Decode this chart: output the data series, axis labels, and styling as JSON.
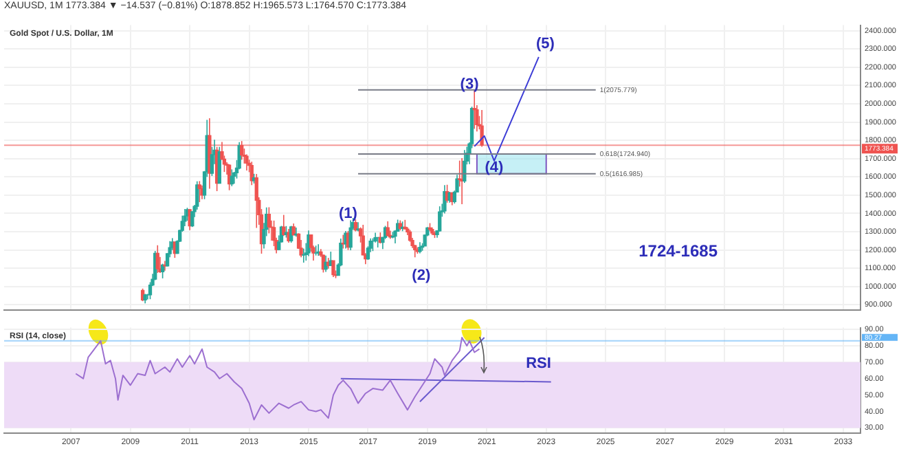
{
  "chart_data": [
    {
      "type": "candlestick",
      "title": "Gold Spot / U.S. Dollar, 1M",
      "subtitle": "XAUUSD, 1M 1773.384 ▼ −14.537 (−0.81%) O:1878.852 H:1965.573 L:1764.570 C:1773.384",
      "x": [
        "2009-06",
        "2009-07",
        "2009-08",
        "2009-09",
        "2009-10",
        "2009-11",
        "2009-12",
        "2010-01",
        "2010-02",
        "2010-03",
        "2010-04",
        "2010-05",
        "2010-06",
        "2010-07",
        "2010-08",
        "2010-09",
        "2010-10",
        "2010-11",
        "2010-12",
        "2011-01",
        "2011-02",
        "2011-03",
        "2011-04",
        "2011-05",
        "2011-06",
        "2011-07",
        "2011-08",
        "2011-09",
        "2011-10",
        "2011-11",
        "2011-12",
        "2012-01",
        "2012-02",
        "2012-03",
        "2012-04",
        "2012-05",
        "2012-06",
        "2012-07",
        "2012-08",
        "2012-09",
        "2012-10",
        "2012-11",
        "2012-12",
        "2013-01",
        "2013-02",
        "2013-03",
        "2013-04",
        "2013-05",
        "2013-06",
        "2013-07",
        "2013-08",
        "2013-09",
        "2013-10",
        "2013-11",
        "2013-12",
        "2014-01",
        "2014-02",
        "2014-03",
        "2014-04",
        "2014-05",
        "2014-06",
        "2014-07",
        "2014-08",
        "2014-09",
        "2014-10",
        "2014-11",
        "2014-12",
        "2015-01",
        "2015-02",
        "2015-03",
        "2015-04",
        "2015-05",
        "2015-06",
        "2015-07",
        "2015-08",
        "2015-09",
        "2015-10",
        "2015-11",
        "2015-12",
        "2016-01",
        "2016-02",
        "2016-03",
        "2016-04",
        "2016-05",
        "2016-06",
        "2016-07",
        "2016-08",
        "2016-09",
        "2016-10",
        "2016-11",
        "2016-12",
        "2017-01",
        "2017-02",
        "2017-03",
        "2017-04",
        "2017-05",
        "2017-06",
        "2017-07",
        "2017-08",
        "2017-09",
        "2017-10",
        "2017-11",
        "2017-12",
        "2018-01",
        "2018-02",
        "2018-03",
        "2018-04",
        "2018-05",
        "2018-06",
        "2018-07",
        "2018-08",
        "2018-09",
        "2018-10",
        "2018-11",
        "2018-12",
        "2019-01",
        "2019-02",
        "2019-03",
        "2019-04",
        "2019-05",
        "2019-06",
        "2019-07",
        "2019-08",
        "2019-09",
        "2019-10",
        "2019-11",
        "2019-12",
        "2020-01",
        "2020-02",
        "2020-03",
        "2020-04",
        "2020-05",
        "2020-06",
        "2020-07",
        "2020-08",
        "2020-09",
        "2020-10",
        "2020-11"
      ],
      "ohlc": [
        [
          979,
          989,
          920,
          927
        ],
        [
          927,
          960,
          908,
          955
        ],
        [
          955,
          960,
          930,
          955
        ],
        [
          955,
          1024,
          931,
          1008
        ],
        [
          1008,
          1070,
          1003,
          1040
        ],
        [
          1040,
          1195,
          1035,
          1182
        ],
        [
          1182,
          1226,
          1075,
          1097
        ],
        [
          1097,
          1162,
          1075,
          1081
        ],
        [
          1081,
          1125,
          1045,
          1118
        ],
        [
          1118,
          1140,
          1087,
          1113
        ],
        [
          1113,
          1183,
          1110,
          1180
        ],
        [
          1180,
          1249,
          1160,
          1213
        ],
        [
          1213,
          1265,
          1200,
          1244
        ],
        [
          1244,
          1245,
          1157,
          1181
        ],
        [
          1181,
          1253,
          1179,
          1248
        ],
        [
          1248,
          1311,
          1244,
          1307
        ],
        [
          1307,
          1388,
          1300,
          1357
        ],
        [
          1357,
          1424,
          1330,
          1386
        ],
        [
          1386,
          1431,
          1360,
          1421
        ],
        [
          1421,
          1424,
          1309,
          1332
        ],
        [
          1332,
          1411,
          1326,
          1410
        ],
        [
          1410,
          1447,
          1380,
          1439
        ],
        [
          1439,
          1576,
          1421,
          1556
        ],
        [
          1556,
          1577,
          1462,
          1536
        ],
        [
          1536,
          1553,
          1478,
          1500
        ],
        [
          1500,
          1632,
          1478,
          1628
        ],
        [
          1628,
          1912,
          1600,
          1826
        ],
        [
          1826,
          1921,
          1535,
          1620
        ],
        [
          1620,
          1764,
          1605,
          1722
        ],
        [
          1722,
          1803,
          1670,
          1746
        ],
        [
          1746,
          1764,
          1522,
          1565
        ],
        [
          1565,
          1764,
          1563,
          1738
        ],
        [
          1738,
          1791,
          1693,
          1697
        ],
        [
          1697,
          1716,
          1627,
          1669
        ],
        [
          1669,
          1680,
          1612,
          1664
        ],
        [
          1664,
          1669,
          1527,
          1561
        ],
        [
          1561,
          1641,
          1549,
          1604
        ],
        [
          1604,
          1627,
          1563,
          1622
        ],
        [
          1622,
          1692,
          1591,
          1648
        ],
        [
          1648,
          1790,
          1642,
          1772
        ],
        [
          1772,
          1796,
          1694,
          1719
        ],
        [
          1719,
          1755,
          1673,
          1713
        ],
        [
          1713,
          1723,
          1635,
          1675
        ],
        [
          1675,
          1694,
          1626,
          1663
        ],
        [
          1663,
          1683,
          1555,
          1579
        ],
        [
          1579,
          1617,
          1564,
          1595
        ],
        [
          1595,
          1616,
          1321,
          1472
        ],
        [
          1472,
          1488,
          1338,
          1393
        ],
        [
          1393,
          1424,
          1180,
          1234
        ],
        [
          1234,
          1348,
          1208,
          1313
        ],
        [
          1313,
          1433,
          1276,
          1396
        ],
        [
          1396,
          1434,
          1291,
          1326
        ],
        [
          1326,
          1361,
          1251,
          1323
        ],
        [
          1323,
          1361,
          1221,
          1253
        ],
        [
          1253,
          1267,
          1182,
          1202
        ],
        [
          1202,
          1280,
          1199,
          1244
        ],
        [
          1244,
          1332,
          1241,
          1326
        ],
        [
          1326,
          1392,
          1277,
          1284
        ],
        [
          1284,
          1331,
          1268,
          1296
        ],
        [
          1296,
          1315,
          1240,
          1250
        ],
        [
          1250,
          1332,
          1240,
          1327
        ],
        [
          1327,
          1345,
          1281,
          1282
        ],
        [
          1282,
          1323,
          1273,
          1287
        ],
        [
          1287,
          1292,
          1206,
          1210
        ],
        [
          1210,
          1255,
          1160,
          1172
        ],
        [
          1172,
          1208,
          1131,
          1175
        ],
        [
          1175,
          1238,
          1142,
          1184
        ],
        [
          1184,
          1307,
          1167,
          1283
        ],
        [
          1283,
          1284,
          1191,
          1213
        ],
        [
          1213,
          1224,
          1142,
          1183
        ],
        [
          1183,
          1224,
          1170,
          1183
        ],
        [
          1183,
          1232,
          1169,
          1190
        ],
        [
          1190,
          1205,
          1162,
          1172
        ],
        [
          1172,
          1175,
          1077,
          1095
        ],
        [
          1095,
          1170,
          1080,
          1133
        ],
        [
          1133,
          1157,
          1098,
          1115
        ],
        [
          1115,
          1191,
          1112,
          1142
        ],
        [
          1142,
          1142,
          1052,
          1065
        ],
        [
          1065,
          1088,
          1046,
          1061
        ],
        [
          1061,
          1127,
          1060,
          1118
        ],
        [
          1118,
          1263,
          1111,
          1238
        ],
        [
          1238,
          1283,
          1208,
          1233
        ],
        [
          1233,
          1304,
          1208,
          1292
        ],
        [
          1292,
          1304,
          1200,
          1215
        ],
        [
          1215,
          1362,
          1199,
          1321
        ],
        [
          1321,
          1375,
          1310,
          1350
        ],
        [
          1350,
          1367,
          1302,
          1309
        ],
        [
          1309,
          1352,
          1302,
          1316
        ],
        [
          1316,
          1324,
          1241,
          1277
        ],
        [
          1277,
          1338,
          1171,
          1173
        ],
        [
          1173,
          1183,
          1123,
          1151
        ],
        [
          1151,
          1220,
          1146,
          1210
        ],
        [
          1210,
          1264,
          1188,
          1249
        ],
        [
          1249,
          1264,
          1194,
          1249
        ],
        [
          1249,
          1295,
          1241,
          1268
        ],
        [
          1268,
          1270,
          1214,
          1269
        ],
        [
          1269,
          1296,
          1236,
          1242
        ],
        [
          1242,
          1272,
          1205,
          1269
        ],
        [
          1269,
          1332,
          1260,
          1322
        ],
        [
          1322,
          1357,
          1274,
          1280
        ],
        [
          1280,
          1306,
          1261,
          1271
        ],
        [
          1271,
          1299,
          1264,
          1275
        ],
        [
          1275,
          1309,
          1236,
          1303
        ],
        [
          1303,
          1366,
          1302,
          1345
        ],
        [
          1345,
          1362,
          1307,
          1318
        ],
        [
          1318,
          1356,
          1303,
          1325
        ],
        [
          1325,
          1365,
          1314,
          1315
        ],
        [
          1315,
          1326,
          1281,
          1299
        ],
        [
          1299,
          1310,
          1245,
          1253
        ],
        [
          1253,
          1266,
          1211,
          1224
        ],
        [
          1224,
          1228,
          1160,
          1201
        ],
        [
          1201,
          1215,
          1180,
          1192
        ],
        [
          1192,
          1243,
          1182,
          1215
        ],
        [
          1215,
          1237,
          1196,
          1222
        ],
        [
          1222,
          1285,
          1221,
          1282
        ],
        [
          1282,
          1326,
          1276,
          1321
        ],
        [
          1321,
          1347,
          1302,
          1313
        ],
        [
          1313,
          1324,
          1281,
          1292
        ],
        [
          1292,
          1303,
          1266,
          1284
        ],
        [
          1284,
          1306,
          1267,
          1305
        ],
        [
          1305,
          1439,
          1301,
          1409
        ],
        [
          1409,
          1453,
          1382,
          1414
        ],
        [
          1414,
          1555,
          1400,
          1520
        ],
        [
          1520,
          1557,
          1459,
          1472
        ],
        [
          1472,
          1518,
          1459,
          1513
        ],
        [
          1513,
          1516,
          1445,
          1464
        ],
        [
          1464,
          1525,
          1454,
          1517
        ],
        [
          1517,
          1611,
          1517,
          1589
        ],
        [
          1589,
          1689,
          1547,
          1585
        ],
        [
          1585,
          1703,
          1451,
          1577
        ],
        [
          1577,
          1747,
          1567,
          1686
        ],
        [
          1686,
          1765,
          1668,
          1730
        ],
        [
          1730,
          1789,
          1670,
          1781
        ],
        [
          1781,
          1984,
          1757,
          1975
        ],
        [
          1975,
          2075,
          1863,
          1967
        ],
        [
          1967,
          1992,
          1848,
          1886
        ],
        [
          1886,
          1933,
          1860,
          1879
        ],
        [
          1878.852,
          1965.573,
          1764.57,
          1773.384
        ]
      ],
      "series": [
        {
          "type": "line",
          "name": "1(2075.779)",
          "color": "#787b86",
          "x": [
            "2016-09",
            "2024-09"
          ],
          "values": [
            2075.779,
            2075.779
          ]
        },
        {
          "type": "line",
          "name": "0.618(1724.940)",
          "color": "#787b86",
          "x": [
            "2016-09",
            "2024-09"
          ],
          "values": [
            1724.94,
            1724.94
          ]
        },
        {
          "type": "line",
          "name": "0.5(1616.985)",
          "color": "#787b86",
          "x": [
            "2016-09",
            "2024-09"
          ],
          "values": [
            1616.985,
            1616.985
          ]
        },
        {
          "type": "line",
          "color": "#7e57c2",
          "x": [
            "2020-09",
            "2023-01"
          ],
          "values": [
            null,
            null
          ],
          "lower": [
            1616.985,
            1616.985
          ],
          "upper": [
            1724.94,
            1724.94
          ]
        },
        {
          "type": "line",
          "color": "#3d3dd6",
          "x": [
            "2020-08",
            "2020-12",
            "2021-04",
            "2022-10"
          ],
          "values": [
            1767,
            1824,
            1688,
            2256
          ]
        }
      ],
      "xlim": [
        "2004-10",
        "2033-08"
      ],
      "ylim": [
        870,
        2430
      ],
      "yticks": [
        {
          "value": 900,
          "label": "900.000"
        },
        {
          "value": 1000,
          "label": "1000.000"
        },
        {
          "value": 1100,
          "label": "1100.000"
        },
        {
          "value": 1200,
          "label": "1200.000"
        },
        {
          "value": 1300,
          "label": "1300.000"
        },
        {
          "value": 1400,
          "label": "1400.000"
        },
        {
          "value": 1500,
          "label": "1500.000"
        },
        {
          "value": 1600,
          "label": "1600.000"
        },
        {
          "value": 1700,
          "label": "1700.000"
        },
        {
          "value": 1800,
          "label": "1800.000"
        },
        {
          "value": 1900,
          "label": "1900.000"
        },
        {
          "value": 2000,
          "label": "2000.000"
        },
        {
          "value": 2100,
          "label": "2100.000"
        },
        {
          "value": 2200,
          "label": "2200.000"
        },
        {
          "value": 2300,
          "label": "2300.000"
        },
        {
          "value": 2400,
          "label": "2400.000"
        }
      ],
      "xticks": [
        "2007",
        "2009",
        "2011",
        "2013",
        "2015",
        "2017",
        "2019",
        "2021",
        "2023",
        "2025",
        "2027",
        "2029",
        "2031",
        "2033"
      ],
      "tick_labels": "y",
      "grid": true,
      "ref_lines": [
        {
          "axis": "y",
          "value": 1773.384,
          "label": "1773.384",
          "color": "#ef5350"
        }
      ],
      "annotations": [
        {
          "text": "(1)",
          "x": "2016-05",
          "y": 1400
        },
        "(2)",
        {
          "text": "(3)",
          "x": "2020-06",
          "y": 2107
        },
        {
          "text": "(4)",
          "x": "2021-04",
          "y": 1652
        },
        "(5)",
        "1724-1685"
      ]
    },
    {
      "type": "line",
      "title": "RSI (14, close)",
      "series": [
        {
          "color": "#9c6fd0",
          "x": [
            "2007-03",
            "2007-06",
            "2007-08",
            "2007-10",
            "2008-01",
            "2008-03",
            "2008-05",
            "2008-07",
            "2008-08",
            "2008-10",
            "2009-01",
            "2009-04",
            "2009-07",
            "2009-09",
            "2009-11",
            "2010-03",
            "2010-05",
            "2010-08",
            "2010-10",
            "2011-01",
            "2011-03",
            "2011-06",
            "2011-08",
            "2011-11",
            "2012-01",
            "2012-04",
            "2012-07",
            "2012-10",
            "2013-01",
            "2013-03",
            "2013-06",
            "2013-09",
            "2014-01",
            "2014-05",
            "2014-07",
            "2014-10",
            "2015-01",
            "2015-04",
            "2015-06",
            "2015-09",
            "2015-11",
            "2016-01",
            "2016-03",
            "2016-06",
            "2016-09",
            "2016-12",
            "2017-03",
            "2017-07",
            "2017-10",
            "2018-01",
            "2018-05",
            "2018-08",
            "2018-11",
            "2019-02",
            "2019-04",
            "2019-07",
            "2019-08",
            "2019-11",
            "2020-02",
            "2020-03",
            "2020-05",
            "2020-06",
            "2020-08",
            "2020-10"
          ],
          "values": [
            63,
            60,
            73,
            77,
            83,
            69,
            71,
            60,
            47,
            62,
            56,
            63,
            62,
            71,
            63,
            67,
            64,
            72,
            67,
            74,
            69,
            78,
            67,
            64,
            60,
            63,
            58,
            54,
            45,
            35,
            44,
            39,
            45,
            42,
            44,
            46,
            41,
            40,
            41,
            36,
            50,
            56,
            59,
            54,
            45,
            51,
            54,
            53,
            59,
            51,
            41,
            49,
            56,
            63,
            72,
            67,
            62,
            71,
            77,
            85,
            80,
            83,
            76,
            78
          ]
        },
        {
          "color": "#6a5acd",
          "x": [
            "2016-02",
            "2023-03"
          ],
          "values": [
            60,
            58
          ]
        },
        {
          "color": "#6a5acd",
          "x": [
            "2018-10",
            "2020-12"
          ],
          "values": [
            46,
            85
          ]
        }
      ],
      "xlim": [
        "2004-10",
        "2033-08"
      ],
      "ylim": [
        27,
        91
      ],
      "yticks": [
        {
          "value": 30,
          "label": "30.00"
        },
        {
          "value": 40,
          "label": "40.00"
        },
        {
          "value": 50,
          "label": "50.00"
        },
        {
          "value": 60,
          "label": "60.00"
        },
        {
          "value": 70,
          "label": "70.00"
        },
        {
          "value": 80,
          "label": "80.00"
        },
        {
          "value": 90,
          "label": "90.00"
        }
      ],
      "xticks": [
        "2007",
        "2009",
        "2011",
        "2013",
        "2015",
        "2017",
        "2019",
        "2021",
        "2023",
        "2025",
        "2027",
        "2029",
        "2031",
        "2033"
      ],
      "grid": true,
      "bands": [
        {
          "axis": "y",
          "from": 30,
          "to": 70,
          "color": "#eedcf7"
        }
      ],
      "ref_lines": [
        {
          "axis": "y",
          "value": 83,
          "color": "#64b5f6"
        }
      ],
      "annotations": [
        "RSI",
        "80.27"
      ]
    }
  ]
}
